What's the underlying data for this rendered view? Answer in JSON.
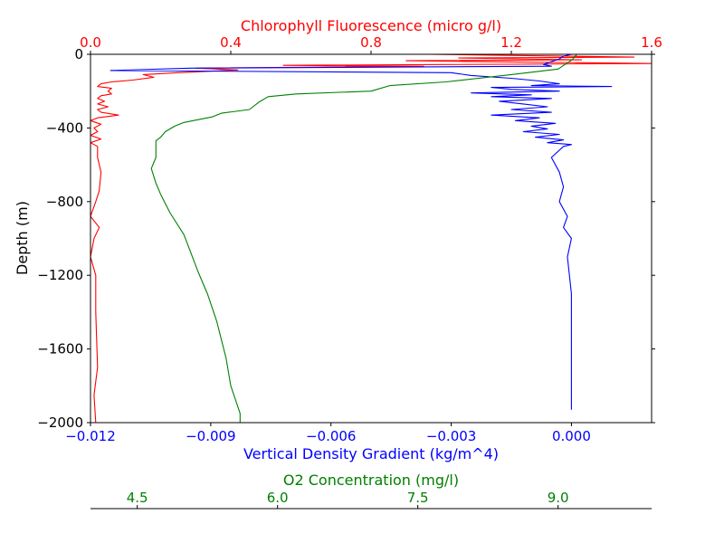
{
  "chart_data": {
    "type": "line",
    "title": "",
    "ylabel": "Depth (m)",
    "ylim": [
      -2000,
      0
    ],
    "yticks": [
      0,
      -400,
      -800,
      -1200,
      -1600,
      -2000
    ],
    "ytick_labels": [
      "0",
      "−400",
      "−800",
      "−1200",
      "−1600",
      "−2000"
    ],
    "axes": {
      "density": {
        "label": "Vertical Density Gradient (kg/m^4)",
        "color": "#0000ff",
        "position": "bottom",
        "xlim": [
          -0.012,
          0.002
        ],
        "ticks": [
          -0.012,
          -0.009,
          -0.006,
          -0.003,
          0.0
        ],
        "tick_labels": [
          "−0.012",
          "−0.009",
          "−0.006",
          "−0.003",
          "0.000"
        ]
      },
      "chlorophyll": {
        "label": "Chlorophyll Fluorescence (micro g/l)",
        "color": "#ff0000",
        "position": "top",
        "xlim": [
          0.0,
          1.6
        ],
        "ticks": [
          0.0,
          0.4,
          0.8,
          1.2,
          1.6
        ],
        "tick_labels": [
          "0.0",
          "0.4",
          "0.8",
          "1.2",
          "1.6"
        ]
      },
      "oxygen": {
        "label": "O2 Concentration (mg/l)",
        "color": "#008000",
        "position": "bottom-offset",
        "xlim": [
          4.0,
          10.0
        ],
        "ticks": [
          4.5,
          6.0,
          7.5,
          9.0
        ],
        "tick_labels": [
          "4.5",
          "6.0",
          "7.5",
          "9.0"
        ]
      }
    },
    "series": [
      {
        "axis": "chlorophyll",
        "color": "#ff0000",
        "points": [
          [
            0.97,
            0
          ],
          [
            1.55,
            -15
          ],
          [
            1.05,
            -20
          ],
          [
            1.4,
            -30
          ],
          [
            0.9,
            -35
          ],
          [
            1.6,
            -50
          ],
          [
            0.55,
            -60
          ],
          [
            0.95,
            -65
          ],
          [
            0.3,
            -75
          ],
          [
            0.42,
            -85
          ],
          [
            0.25,
            -100
          ],
          [
            0.15,
            -110
          ],
          [
            0.18,
            -125
          ],
          [
            0.12,
            -140
          ],
          [
            0.06,
            -150
          ],
          [
            0.03,
            -160
          ],
          [
            0.02,
            -175
          ],
          [
            0.06,
            -185
          ],
          [
            0.05,
            -200
          ],
          [
            0.06,
            -215
          ],
          [
            0.03,
            -225
          ],
          [
            0.02,
            -240
          ],
          [
            0.04,
            -255
          ],
          [
            0.02,
            -270
          ],
          [
            0.05,
            -285
          ],
          [
            0.02,
            -300
          ],
          [
            0.03,
            -315
          ],
          [
            0.08,
            -330
          ],
          [
            0.02,
            -345
          ],
          [
            0.0,
            -360
          ],
          [
            0.03,
            -380
          ],
          [
            0.01,
            -400
          ],
          [
            0.02,
            -420
          ],
          [
            0.0,
            -440
          ],
          [
            0.03,
            -460
          ],
          [
            0.0,
            -480
          ],
          [
            0.02,
            -500
          ],
          [
            0.02,
            -560
          ],
          [
            0.03,
            -640
          ],
          [
            0.025,
            -740
          ],
          [
            0.015,
            -800
          ],
          [
            0.0,
            -880
          ],
          [
            0.025,
            -940
          ],
          [
            0.01,
            -1000
          ],
          [
            0.0,
            -1100
          ],
          [
            0.015,
            -1200
          ],
          [
            0.015,
            -1400
          ],
          [
            0.02,
            -1700
          ],
          [
            0.01,
            -1850
          ],
          [
            0.015,
            -2000
          ]
        ]
      },
      {
        "axis": "density",
        "color": "#0000ff",
        "points": [
          [
            0.0,
            0
          ],
          [
            -0.0002,
            -10
          ],
          [
            -0.0003,
            -25
          ],
          [
            -0.0005,
            -40
          ],
          [
            -0.0007,
            -55
          ],
          [
            -0.0005,
            -65
          ],
          [
            -0.0095,
            -75
          ],
          [
            -0.0115,
            -88
          ],
          [
            -0.003,
            -100
          ],
          [
            -0.0025,
            -115
          ],
          [
            -0.0015,
            -130
          ],
          [
            -0.0008,
            -145
          ],
          [
            -0.0003,
            -160
          ],
          [
            -0.001,
            -170
          ],
          [
            0.001,
            -175
          ],
          [
            -0.002,
            -180
          ],
          [
            -0.0015,
            -190
          ],
          [
            -0.0003,
            -200
          ],
          [
            -0.0025,
            -210
          ],
          [
            -0.001,
            -220
          ],
          [
            -0.002,
            -230
          ],
          [
            -0.0005,
            -240
          ],
          [
            -0.0018,
            -255
          ],
          [
            -0.0012,
            -270
          ],
          [
            -0.0006,
            -285
          ],
          [
            -0.0015,
            -300
          ],
          [
            -0.0005,
            -315
          ],
          [
            -0.002,
            -330
          ],
          [
            -0.0008,
            -345
          ],
          [
            -0.0014,
            -360
          ],
          [
            -0.0004,
            -375
          ],
          [
            -0.001,
            -390
          ],
          [
            -0.0006,
            -405
          ],
          [
            -0.0012,
            -420
          ],
          [
            -0.0003,
            -435
          ],
          [
            -0.0009,
            -450
          ],
          [
            -0.0002,
            -465
          ],
          [
            -0.0006,
            -480
          ],
          [
            0.0,
            -490
          ],
          [
            -0.0002,
            -500
          ],
          [
            -0.0005,
            -560
          ],
          [
            -0.0003,
            -640
          ],
          [
            -0.0002,
            -720
          ],
          [
            -0.0003,
            -800
          ],
          [
            -0.0001,
            -880
          ],
          [
            -0.0002,
            -940
          ],
          [
            0.0,
            -1000
          ],
          [
            -0.0001,
            -1100
          ],
          [
            0.0,
            -1300
          ],
          [
            0.0,
            -1600
          ],
          [
            0.0,
            -1900
          ],
          [
            0.0,
            -1930
          ]
        ]
      },
      {
        "axis": "oxygen",
        "color": "#008000",
        "points": [
          [
            9.2,
            0
          ],
          [
            9.15,
            -30
          ],
          [
            9.0,
            -80
          ],
          [
            8.5,
            -110
          ],
          [
            7.8,
            -150
          ],
          [
            7.2,
            -170
          ],
          [
            7.0,
            -200
          ],
          [
            6.2,
            -215
          ],
          [
            5.9,
            -230
          ],
          [
            5.8,
            -260
          ],
          [
            5.7,
            -300
          ],
          [
            5.4,
            -320
          ],
          [
            5.3,
            -340
          ],
          [
            5.0,
            -370
          ],
          [
            4.9,
            -390
          ],
          [
            4.8,
            -420
          ],
          [
            4.75,
            -450
          ],
          [
            4.7,
            -470
          ],
          [
            4.7,
            -500
          ],
          [
            4.7,
            -560
          ],
          [
            4.65,
            -620
          ],
          [
            4.7,
            -700
          ],
          [
            4.75,
            -760
          ],
          [
            4.85,
            -860
          ],
          [
            5.0,
            -980
          ],
          [
            5.15,
            -1180
          ],
          [
            5.25,
            -1300
          ],
          [
            5.35,
            -1450
          ],
          [
            5.45,
            -1650
          ],
          [
            5.5,
            -1800
          ],
          [
            5.6,
            -1950
          ],
          [
            5.6,
            -2000
          ]
        ]
      }
    ]
  }
}
